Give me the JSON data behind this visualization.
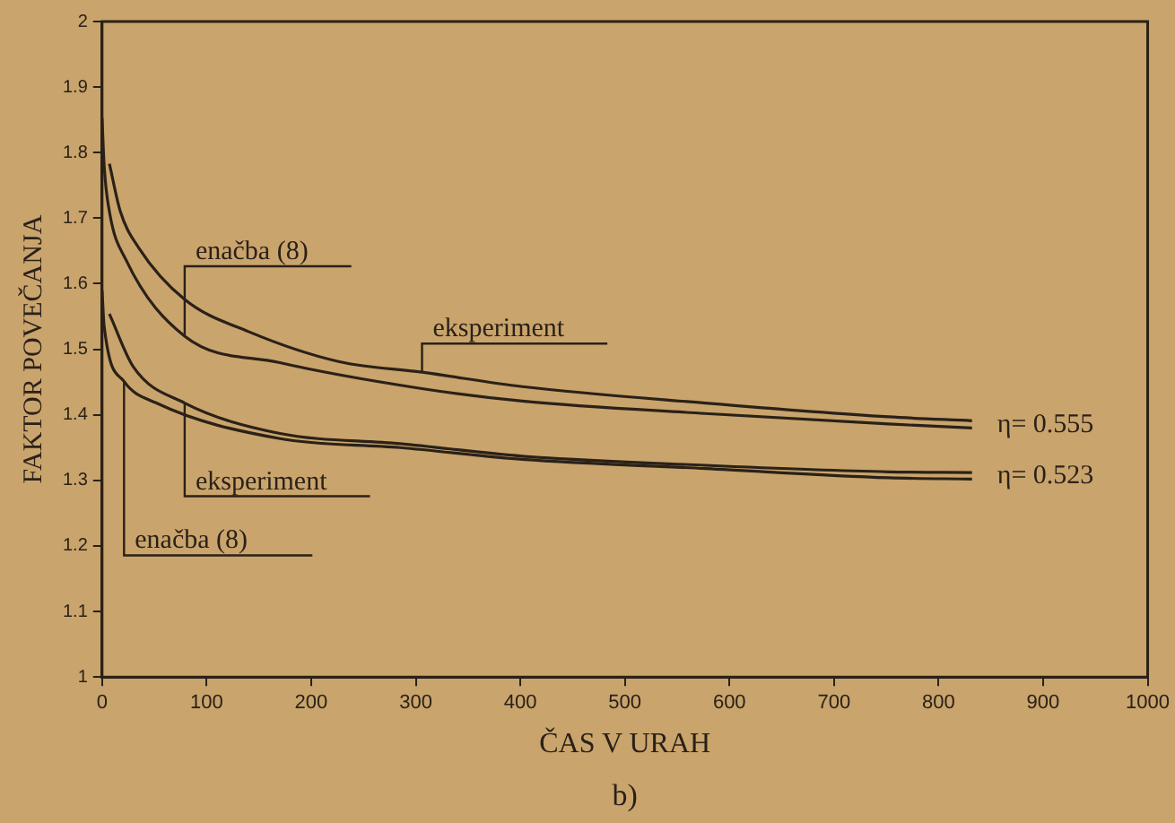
{
  "chart_data": {
    "type": "line",
    "xlabel": "ČAS V URAH",
    "ylabel": "FAKTOR POVEČANJA",
    "xlim": [
      0,
      1000
    ],
    "ylim": [
      1,
      2
    ],
    "xticks": [
      0,
      100,
      200,
      300,
      400,
      500,
      600,
      700,
      800,
      900,
      1000
    ],
    "yticks": [
      1,
      1.1,
      1.2,
      1.3,
      1.4,
      1.5,
      1.6,
      1.7,
      1.8,
      1.9,
      2
    ],
    "grid": false,
    "legend": false,
    "marker": "none",
    "line_style": "solid",
    "series": [
      {
        "color": "#2a2118",
        "x": [
          7,
          17.5,
          35,
          79,
          140,
          227,
          306,
          402,
          577,
          752,
          832
        ],
        "values": [
          1.783,
          1.71,
          1.655,
          1.576,
          1.527,
          1.481,
          1.465,
          1.443,
          1.418,
          1.397,
          1.391
        ]
      },
      {
        "color": "#2a2118",
        "x": [
          0,
          2,
          7,
          23,
          79,
          169,
          306,
          402,
          577,
          752,
          832
        ],
        "values": [
          1.853,
          1.78,
          1.71,
          1.636,
          1.52,
          1.48,
          1.44,
          1.421,
          1.402,
          1.386,
          1.38
        ]
      },
      {
        "color": "#2a2118",
        "x": [
          7,
          30,
          79,
          169,
          285,
          402,
          577,
          752,
          832
        ],
        "values": [
          1.554,
          1.473,
          1.418,
          1.372,
          1.356,
          1.337,
          1.323,
          1.313,
          1.312
        ]
      },
      {
        "color": "#2a2118",
        "x": [
          0,
          2,
          21,
          52,
          169,
          285,
          402,
          577,
          752,
          832
        ],
        "values": [
          1.59,
          1.535,
          1.451,
          1.418,
          1.364,
          1.35,
          1.332,
          1.318,
          1.304,
          1.302
        ]
      }
    ],
    "annotations": [
      {
        "text": "enačba (8)",
        "x": 79,
        "y": 1.52
      },
      {
        "text": "eksperiment",
        "x": 306,
        "y": 1.465
      },
      {
        "text": "eksperiment",
        "x": 79,
        "y": 1.418
      },
      {
        "text": "enačba (8)",
        "x": 21,
        "y": 1.451
      },
      {
        "text": "η= 0.555",
        "x": 832,
        "y": 1.385
      },
      {
        "text": "η= 0.523",
        "x": 832,
        "y": 1.307
      },
      "b)"
    ]
  }
}
